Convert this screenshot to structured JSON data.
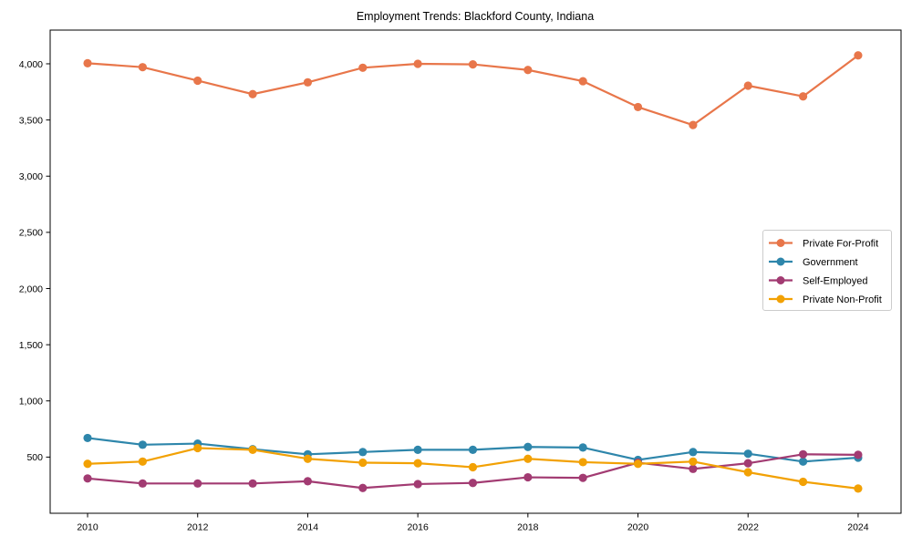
{
  "chart_data": {
    "type": "line",
    "title": "Employment Trends: Blackford County, Indiana",
    "xlabel": "",
    "ylabel": "",
    "x": [
      2010,
      2011,
      2012,
      2013,
      2014,
      2015,
      2016,
      2017,
      2018,
      2019,
      2020,
      2021,
      2022,
      2023,
      2024
    ],
    "x_tick_years": [
      2010,
      2012,
      2014,
      2016,
      2018,
      2020,
      2022,
      2024
    ],
    "x_tick_labels": [
      "2010",
      "2012",
      "2014",
      "2016",
      "2018",
      "2020",
      "2022",
      "2024"
    ],
    "y_ticks": [
      500,
      1000,
      1500,
      2000,
      2500,
      3000,
      3500,
      4000
    ],
    "y_tick_labels": [
      "500",
      "1,000",
      "1,500",
      "2,000",
      "2,500",
      "3,000",
      "3,500",
      "4,000"
    ],
    "xlim": [
      2009.32,
      2024.78
    ],
    "ylim": [
      0,
      4300
    ],
    "grid": false,
    "legend_position": "right-middle",
    "legend_border_color": "#cccccc",
    "series": [
      {
        "name": "Private For-Profit",
        "color": "#E8764A",
        "values": [
          4005,
          3970,
          3850,
          3730,
          3835,
          3965,
          4000,
          3995,
          3945,
          3845,
          3615,
          3455,
          3805,
          3710,
          4075
        ]
      },
      {
        "name": "Government",
        "color": "#2E86AB",
        "values": [
          670,
          610,
          620,
          570,
          525,
          545,
          565,
          565,
          590,
          585,
          475,
          545,
          530,
          460,
          495
        ]
      },
      {
        "name": "Self-Employed",
        "color": "#A23B72",
        "values": [
          310,
          265,
          265,
          265,
          285,
          225,
          260,
          270,
          320,
          315,
          450,
          395,
          445,
          525,
          520
        ]
      },
      {
        "name": "Private Non-Profit",
        "color": "#F2A104",
        "values": [
          440,
          460,
          580,
          565,
          485,
          450,
          445,
          410,
          485,
          455,
          440,
          460,
          365,
          280,
          220
        ]
      }
    ]
  }
}
